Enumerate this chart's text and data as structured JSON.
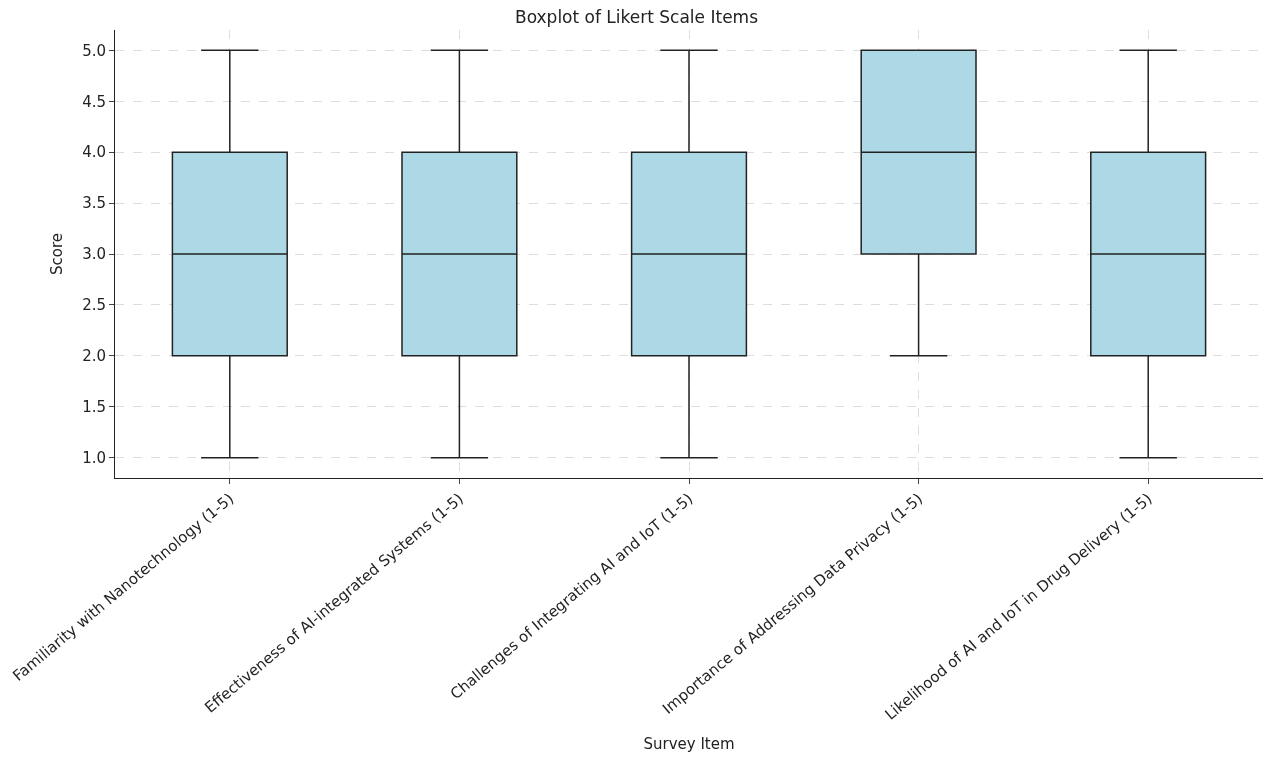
{
  "chart_data": {
    "type": "box",
    "title": "Boxplot of Likert Scale Items",
    "xlabel": "Survey Item",
    "ylabel": "Score",
    "categories": [
      "Familiarity with Nanotechnology (1-5)",
      "Effectiveness of AI-integrated Systems (1-5)",
      "Challenges of Integrating AI and IoT (1-5)",
      "Importance of Addressing Data Privacy (1-5)",
      "Likelihood of AI and IoT in Drug Delivery (1-5)"
    ],
    "boxes": [
      {
        "low": 1,
        "q1": 2,
        "median": 3,
        "q3": 4,
        "high": 5
      },
      {
        "low": 1,
        "q1": 2,
        "median": 3,
        "q3": 4,
        "high": 5
      },
      {
        "low": 1,
        "q1": 2,
        "median": 3,
        "q3": 4,
        "high": 5
      },
      {
        "low": 2,
        "q1": 3,
        "median": 4,
        "q3": 5,
        "high": 5
      },
      {
        "low": 1,
        "q1": 2,
        "median": 3,
        "q3": 4,
        "high": 5
      }
    ],
    "color": "#add8e6",
    "ylim": [
      0.8,
      5.2
    ],
    "yticks": [
      {
        "value": 1,
        "label": "1.0"
      },
      {
        "value": 1.5,
        "label": "1.5"
      },
      {
        "value": 2,
        "label": "2.0"
      },
      {
        "value": 2.5,
        "label": "2.5"
      },
      {
        "value": 3,
        "label": "3.0"
      },
      {
        "value": 3.5,
        "label": "3.5"
      },
      {
        "value": 4,
        "label": "4.0"
      },
      {
        "value": 4.5,
        "label": "4.5"
      },
      {
        "value": 5,
        "label": "5.0"
      }
    ],
    "grid": true
  }
}
